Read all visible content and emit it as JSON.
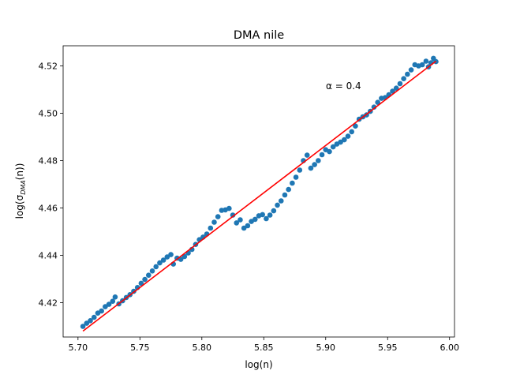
{
  "chart_data": {
    "type": "scatter",
    "title": "DMA nile",
    "xlabel": "log(n)",
    "ylabel_parts": {
      "prefix": "log(σ",
      "subscript": "DMA",
      "suffix": "(n))"
    },
    "annotation": "α = 0.4",
    "xlim": [
      5.688,
      6.004
    ],
    "ylim": [
      4.4055,
      4.5285
    ],
    "xticks": [
      5.7,
      5.75,
      5.8,
      5.85,
      5.9,
      5.95,
      6.0
    ],
    "xtick_labels": [
      "5.70",
      "5.75",
      "5.80",
      "5.85",
      "5.90",
      "5.95",
      "6.00"
    ],
    "yticks": [
      4.42,
      4.44,
      4.46,
      4.48,
      4.5,
      4.52
    ],
    "ytick_labels": [
      "4.42",
      "4.44",
      "4.46",
      "4.48",
      "4.50",
      "4.52"
    ],
    "grid": false,
    "series": [
      {
        "type": "scatter",
        "color": "#1f77b4",
        "points": [
          [
            5.704,
            4.41
          ],
          [
            5.707,
            4.4113
          ],
          [
            5.71,
            4.4124
          ],
          [
            5.713,
            4.4138
          ],
          [
            5.716,
            4.4156
          ],
          [
            5.719,
            4.4165
          ],
          [
            5.722,
            4.4183
          ],
          [
            5.725,
            4.4193
          ],
          [
            5.728,
            4.4206
          ],
          [
            5.73,
            4.4224
          ],
          [
            5.733,
            4.4195
          ],
          [
            5.736,
            4.4208
          ],
          [
            5.739,
            4.4222
          ],
          [
            5.742,
            4.4234
          ],
          [
            5.745,
            4.4248
          ],
          [
            5.748,
            4.4264
          ],
          [
            5.751,
            4.4282
          ],
          [
            5.754,
            4.4298
          ],
          [
            5.757,
            4.4316
          ],
          [
            5.76,
            4.4334
          ],
          [
            5.763,
            4.4352
          ],
          [
            5.766,
            4.4368
          ],
          [
            5.769,
            4.438
          ],
          [
            5.772,
            4.4393
          ],
          [
            5.775,
            4.4403
          ],
          [
            5.777,
            4.4363
          ],
          [
            5.78,
            4.4388
          ],
          [
            5.783,
            4.4383
          ],
          [
            5.786,
            4.4395
          ],
          [
            5.789,
            4.441
          ],
          [
            5.792,
            4.4425
          ],
          [
            5.795,
            4.4446
          ],
          [
            5.798,
            4.4466
          ],
          [
            5.801,
            4.4477
          ],
          [
            5.804,
            4.449
          ],
          [
            5.807,
            4.4515
          ],
          [
            5.81,
            4.454
          ],
          [
            5.813,
            4.4563
          ],
          [
            5.816,
            4.459
          ],
          [
            5.819,
            4.4592
          ],
          [
            5.822,
            4.4598
          ],
          [
            5.825,
            4.457
          ],
          [
            5.828,
            4.4537
          ],
          [
            5.831,
            4.455
          ],
          [
            5.834,
            4.4515
          ],
          [
            5.837,
            4.4525
          ],
          [
            5.84,
            4.4543
          ],
          [
            5.843,
            4.4552
          ],
          [
            5.846,
            4.4567
          ],
          [
            5.849,
            4.4572
          ],
          [
            5.852,
            4.4555
          ],
          [
            5.855,
            4.457
          ],
          [
            5.858,
            4.4588
          ],
          [
            5.861,
            4.4612
          ],
          [
            5.864,
            4.463
          ],
          [
            5.867,
            4.4655
          ],
          [
            5.87,
            4.4678
          ],
          [
            5.873,
            4.4705
          ],
          [
            5.876,
            4.473
          ],
          [
            5.879,
            4.476
          ],
          [
            5.882,
            4.48
          ],
          [
            5.885,
            4.4823
          ],
          [
            5.888,
            4.4768
          ],
          [
            5.891,
            4.4783
          ],
          [
            5.894,
            4.48
          ],
          [
            5.897,
            4.4825
          ],
          [
            5.9,
            4.4846
          ],
          [
            5.903,
            4.4838
          ],
          [
            5.906,
            4.4858
          ],
          [
            5.909,
            4.487
          ],
          [
            5.912,
            4.4878
          ],
          [
            5.915,
            4.4888
          ],
          [
            5.918,
            4.4903
          ],
          [
            5.921,
            4.4922
          ],
          [
            5.924,
            4.4946
          ],
          [
            5.927,
            4.4975
          ],
          [
            5.93,
            4.4985
          ],
          [
            5.933,
            4.4993
          ],
          [
            5.936,
            4.5008
          ],
          [
            5.939,
            4.5026
          ],
          [
            5.942,
            4.5046
          ],
          [
            5.945,
            4.5063
          ],
          [
            5.948,
            4.5066
          ],
          [
            5.951,
            4.5078
          ],
          [
            5.954,
            4.5093
          ],
          [
            5.957,
            4.5106
          ],
          [
            5.96,
            4.5125
          ],
          [
            5.963,
            4.5146
          ],
          [
            5.966,
            4.5165
          ],
          [
            5.969,
            4.5183
          ],
          [
            5.972,
            4.5205
          ],
          [
            5.975,
            4.52
          ],
          [
            5.978,
            4.5205
          ],
          [
            5.981,
            4.522
          ],
          [
            5.983,
            4.5196
          ],
          [
            5.985,
            4.5213
          ],
          [
            5.987,
            4.5232
          ],
          [
            5.989,
            4.5218
          ]
        ]
      },
      {
        "type": "line",
        "color": "#ff0000",
        "points": [
          [
            5.704,
            4.408
          ],
          [
            5.989,
            4.522
          ]
        ]
      }
    ]
  }
}
